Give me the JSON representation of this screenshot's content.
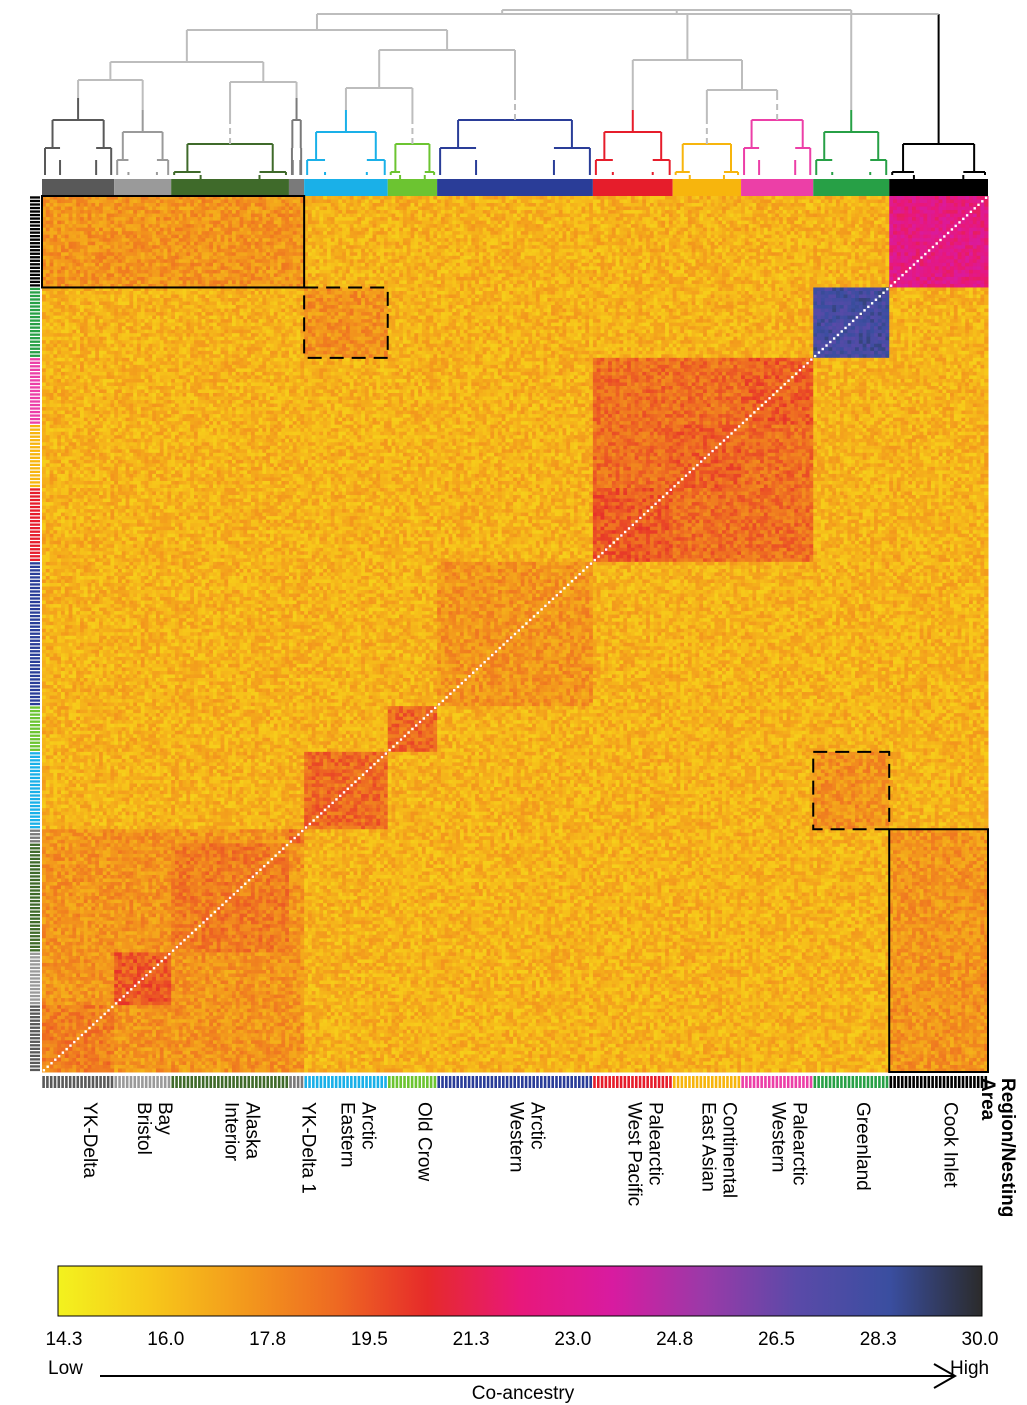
{
  "chart_data": {
    "type": "heatmap",
    "title": "",
    "value_label": "Co-ancestry",
    "axis_title": "Region/Nesting Area",
    "axis_title_lines": [
      "Region/Nesting",
      "Area"
    ],
    "colorbar": {
      "ticks": [
        "14.3",
        "16.0",
        "17.8",
        "19.5",
        "21.3",
        "23.0",
        "24.8",
        "26.5",
        "28.3",
        "30.0"
      ],
      "range": [
        14.3,
        30.0
      ],
      "low_label": "Low",
      "high_label": "High",
      "colors": [
        "#f3f21e",
        "#f7c81a",
        "#f39a1c",
        "#ee6a22",
        "#e62a2a",
        "#e8187a",
        "#d81ba0",
        "#9a3aa8",
        "#5a4aa8",
        "#3a4ea0",
        "#2b2b2b"
      ]
    },
    "groups": [
      {
        "id": "ykdelta",
        "label": "YK-Delta",
        "color": "#595959",
        "n": 19,
        "dash": false
      },
      {
        "id": "bristol",
        "label": "Bristol Bay",
        "color": "#9a9a9a",
        "n": 15,
        "dash": false
      },
      {
        "id": "interior",
        "label": "Interior Alaska",
        "color": "#3f6a2a",
        "n": 31,
        "dash": true
      },
      {
        "id": "ykdelta1",
        "label": "YK-Delta 1",
        "color": "#7a7a7a",
        "n": 4,
        "dash": false
      },
      {
        "id": "eastarctic",
        "label": "Eastern Arctic",
        "color": "#1ab0e8",
        "n": 22,
        "dash": false
      },
      {
        "id": "oldcrow",
        "label": "Old Crow",
        "color": "#6cc431",
        "n": 13,
        "dash": true
      },
      {
        "id": "westarctic",
        "label": "Western Arctic",
        "color": "#2a3d98",
        "n": 41,
        "dash": true
      },
      {
        "id": "wpal",
        "label": "West Pacific Palearctic",
        "color": "#e61d2b",
        "n": 21,
        "dash": false
      },
      {
        "id": "eacont",
        "label": "East Asian Continental",
        "color": "#f7b50d",
        "n": 18,
        "dash": true
      },
      {
        "id": "westpal",
        "label": "Western Palearctic",
        "color": "#ec3fa7",
        "n": 19,
        "dash": true
      },
      {
        "id": "greenland",
        "label": "Greenland",
        "color": "#27a046",
        "n": 20,
        "dash": false
      },
      {
        "id": "cookinlet",
        "label": "Cook Inlet",
        "color": "#000000",
        "n": 26,
        "dash": false
      }
    ],
    "x_labels": [
      {
        "group": "ykdelta",
        "lines": [
          "YK-Delta"
        ]
      },
      {
        "group": "bristol",
        "lines": [
          "Bristol",
          "Bay"
        ]
      },
      {
        "group": "interior",
        "lines": [
          "Interior",
          "Alaska"
        ]
      },
      {
        "group": "ykdelta1",
        "lines": [
          "YK-Delta 1"
        ]
      },
      {
        "group": "eastarctic",
        "lines": [
          "Eastern",
          "Arctic"
        ]
      },
      {
        "group": "oldcrow",
        "lines": [
          "Old Crow"
        ]
      },
      {
        "group": "westarctic",
        "lines": [
          "Western",
          "Arctic"
        ]
      },
      {
        "group": "wpal",
        "lines": [
          "West Pacific",
          "Palearctic"
        ]
      },
      {
        "group": "eacont",
        "lines": [
          "East Asian",
          "Continental"
        ]
      },
      {
        "group": "westpal",
        "lines": [
          "Western",
          "Palearctic"
        ]
      },
      {
        "group": "greenland",
        "lines": [
          "Greenland"
        ]
      },
      {
        "group": "cookinlet",
        "lines": [
          "Cook Inlet"
        ]
      }
    ],
    "row_order": [
      "cookinlet",
      "greenland",
      "westpal",
      "eacont",
      "wpal",
      "westarctic",
      "oldcrow",
      "eastarctic",
      "ykdelta1",
      "interior",
      "bristol",
      "ykdelta"
    ],
    "block_means": {
      "background": 16.6,
      "within": {
        "ykdelta": 18.3,
        "bristol": 19.4,
        "interior": 18.4,
        "ykdelta1": 18.8,
        "eastarctic": 18.9,
        "oldcrow": 19.0,
        "westarctic": 17.6,
        "wpal": 19.4,
        "eacont": 19.2,
        "westpal": 19.3,
        "greenland": 27.9,
        "cookinlet": 22.6
      },
      "alaska_cluster_between": 17.6,
      "palearctic_cluster_between": 18.8,
      "cook_alaska_between": 17.6,
      "greenland_eastarctic_between": 17.7
    },
    "highlight_boxes": [
      {
        "rows": "cookinlet",
        "cols": [
          "ykdelta",
          "bristol",
          "interior",
          "ykdelta1"
        ],
        "style": "solid"
      },
      {
        "rows": "greenland",
        "cols": [
          "eastarctic"
        ],
        "style": "dashed"
      },
      {
        "rows": "eastarctic",
        "cols": [
          "greenland"
        ],
        "style": "dashed"
      },
      {
        "rows": [
          "ykdelta1",
          "interior",
          "bristol",
          "ykdelta"
        ],
        "cols": [
          "cookinlet"
        ],
        "style": "solid"
      }
    ],
    "dendrogram": "hierarchical clustering of individuals, colored by region",
    "legend": "none"
  }
}
